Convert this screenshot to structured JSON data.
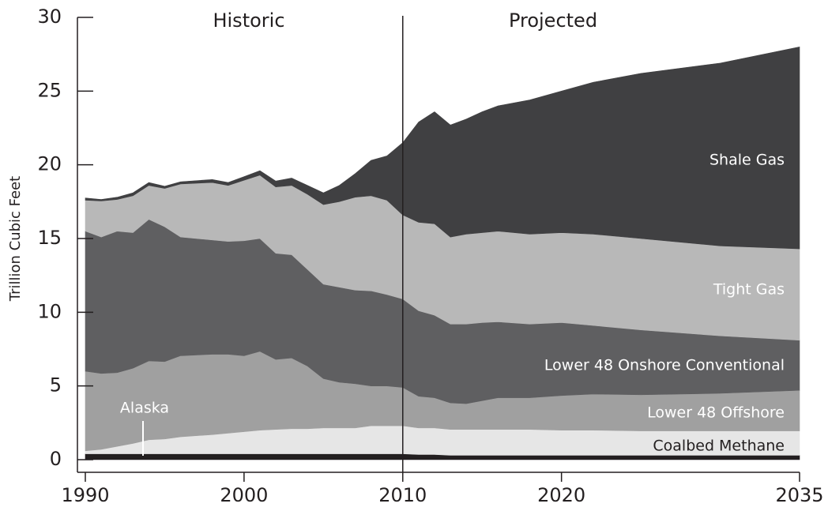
{
  "chart_data": {
    "type": "stacked_area",
    "y_label": "Trillion Cubic Feet",
    "annotations": [
      {
        "text": "Historic"
      },
      {
        "text": "Projected"
      }
    ],
    "divider": 2010,
    "x": [
      1990,
      1991,
      1992,
      1993,
      1994,
      1995,
      1996,
      1998,
      1999,
      2000,
      2001,
      2002,
      2003,
      2004,
      2005,
      2006,
      2007,
      2008,
      2009,
      2010,
      2011,
      2012,
      2013,
      2014,
      2015,
      2016,
      2018,
      2020,
      2022,
      2025,
      2030,
      2035
    ],
    "xlim": [
      1990,
      2035
    ],
    "xticks": [
      1990,
      2000,
      2010,
      2020,
      2035
    ],
    "ylim": [
      0,
      30
    ],
    "yticks": [
      0,
      5,
      10,
      15,
      20,
      25,
      30
    ],
    "series": [
      {
        "name": "Alaska",
        "color": "#231f20",
        "label_color": "#ffffff",
        "values": [
          0.4,
          0.4,
          0.4,
          0.4,
          0.4,
          0.4,
          0.4,
          0.4,
          0.4,
          0.4,
          0.4,
          0.4,
          0.4,
          0.4,
          0.4,
          0.4,
          0.4,
          0.4,
          0.4,
          0.4,
          0.35,
          0.35,
          0.3,
          0.3,
          0.3,
          0.3,
          0.3,
          0.3,
          0.3,
          0.3,
          0.3,
          0.3
        ]
      },
      {
        "name": "Coalbed Methane",
        "color": "#e6e6e6",
        "label_color": "#231f20",
        "values": [
          0.2,
          0.3,
          0.5,
          0.7,
          0.95,
          1.0,
          1.15,
          1.3,
          1.4,
          1.5,
          1.6,
          1.65,
          1.7,
          1.7,
          1.75,
          1.75,
          1.75,
          1.9,
          1.9,
          1.9,
          1.8,
          1.8,
          1.75,
          1.75,
          1.75,
          1.75,
          1.75,
          1.7,
          1.7,
          1.65,
          1.65,
          1.65
        ]
      },
      {
        "name": "Lower 48 Offshore",
        "color": "#a0a0a0",
        "label_color": "#ffffff",
        "values": [
          5.4,
          5.15,
          5.0,
          5.1,
          5.35,
          5.25,
          5.5,
          5.45,
          5.35,
          5.15,
          5.35,
          4.75,
          4.8,
          4.25,
          3.35,
          3.1,
          3.0,
          2.7,
          2.7,
          2.6,
          2.15,
          2.05,
          1.8,
          1.75,
          1.95,
          2.15,
          2.15,
          2.35,
          2.45,
          2.45,
          2.55,
          2.75
        ]
      },
      {
        "name": "Lower 48 Onshore Conventional",
        "color": "#5f5f61",
        "label_color": "#ffffff",
        "values": [
          9.5,
          9.25,
          9.6,
          9.2,
          9.6,
          9.15,
          8.05,
          7.75,
          7.65,
          7.8,
          7.65,
          7.2,
          7.0,
          6.55,
          6.4,
          6.45,
          6.35,
          6.45,
          6.2,
          6.0,
          5.8,
          5.6,
          5.35,
          5.4,
          5.3,
          5.15,
          5.0,
          4.95,
          4.65,
          4.4,
          3.9,
          3.4
        ]
      },
      {
        "name": "Tight Gas",
        "color": "#b8b8b8",
        "label_color": "#ffffff",
        "values": [
          2.1,
          2.45,
          2.15,
          2.5,
          2.3,
          2.6,
          3.6,
          3.9,
          3.8,
          4.1,
          4.3,
          4.5,
          4.7,
          5.1,
          5.4,
          5.8,
          6.3,
          6.45,
          6.4,
          5.7,
          6.0,
          6.2,
          5.9,
          6.1,
          6.1,
          6.15,
          6.1,
          6.1,
          6.2,
          6.2,
          6.1,
          6.2
        ]
      },
      {
        "name": "Shale Gas",
        "color": "#404042",
        "label_color": "#ffffff",
        "values": [
          0.15,
          0.1,
          0.15,
          0.2,
          0.2,
          0.15,
          0.15,
          0.2,
          0.2,
          0.25,
          0.3,
          0.4,
          0.5,
          0.6,
          0.8,
          1.1,
          1.6,
          2.4,
          3.0,
          4.9,
          6.8,
          7.6,
          7.6,
          7.8,
          8.2,
          8.5,
          9.1,
          9.6,
          10.3,
          11.2,
          12.4,
          13.7
        ]
      }
    ]
  }
}
